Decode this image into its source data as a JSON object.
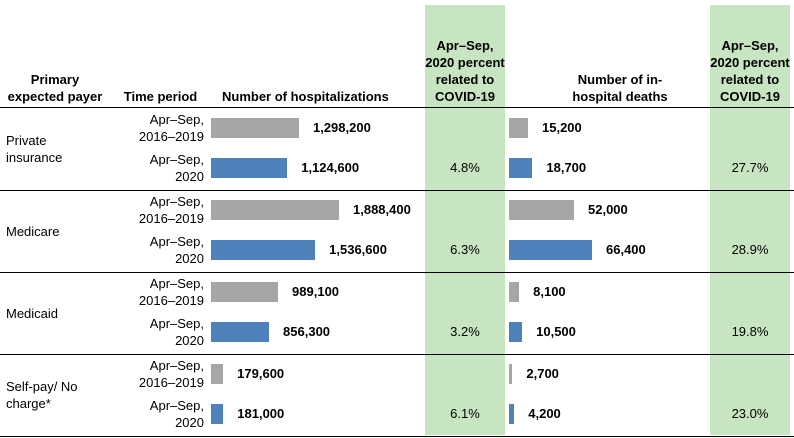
{
  "table": {
    "headers": [
      "Primary expected payer",
      "Time period",
      "Number of hospitalizations",
      "Apr–Sep, 2020 percent related to COVID-19",
      "Number of in-hospital deaths",
      "Apr–Sep, 2020 percent related to COVID-19"
    ],
    "colors": {
      "base": "#a6a6a6",
      "current": "#4f81bd",
      "highlight": "#c6e5c0"
    },
    "groups": [
      {
        "payer": "Private insurance",
        "hosp_pct": "4.8%",
        "death_pct": "27.7%",
        "rows": [
          {
            "period": "Apr–Sep, 2016–2019",
            "hospitalizations": {
              "value": 1298200,
              "label": "1,298,200"
            },
            "deaths": {
              "value": 15200,
              "label": "15,200"
            }
          },
          {
            "period": "Apr–Sep, 2020",
            "hospitalizations": {
              "value": 1124600,
              "label": "1,124,600"
            },
            "deaths": {
              "value": 18700,
              "label": "18,700"
            }
          }
        ]
      },
      {
        "payer": "Medicare",
        "hosp_pct": "6.3%",
        "death_pct": "28.9%",
        "rows": [
          {
            "period": "Apr–Sep, 2016–2019",
            "hospitalizations": {
              "value": 1888400,
              "label": "1,888,400"
            },
            "deaths": {
              "value": 52000,
              "label": "52,000"
            }
          },
          {
            "period": "Apr–Sep, 2020",
            "hospitalizations": {
              "value": 1536600,
              "label": "1,536,600"
            },
            "deaths": {
              "value": 66400,
              "label": "66,400"
            }
          }
        ]
      },
      {
        "payer": "Medicaid",
        "hosp_pct": "3.2%",
        "death_pct": "19.8%",
        "rows": [
          {
            "period": "Apr–Sep, 2016–2019",
            "hospitalizations": {
              "value": 989100,
              "label": "989,100"
            },
            "deaths": {
              "value": 8100,
              "label": "8,100"
            }
          },
          {
            "period": "Apr–Sep, 2020",
            "hospitalizations": {
              "value": 856300,
              "label": "856,300"
            },
            "deaths": {
              "value": 10500,
              "label": "10,500"
            }
          }
        ]
      },
      {
        "payer": "Self-pay/ No charge*",
        "hosp_pct": "6.1%",
        "death_pct": "23.0%",
        "rows": [
          {
            "period": "Apr–Sep, 2016–2019",
            "hospitalizations": {
              "value": 179600,
              "label": "179,600"
            },
            "deaths": {
              "value": 2700,
              "label": "2,700"
            }
          },
          {
            "period": "Apr–Sep, 2020",
            "hospitalizations": {
              "value": 181000,
              "label": "181,000"
            },
            "deaths": {
              "value": 4200,
              "label": "4,200"
            }
          }
        ]
      }
    ]
  }
}
